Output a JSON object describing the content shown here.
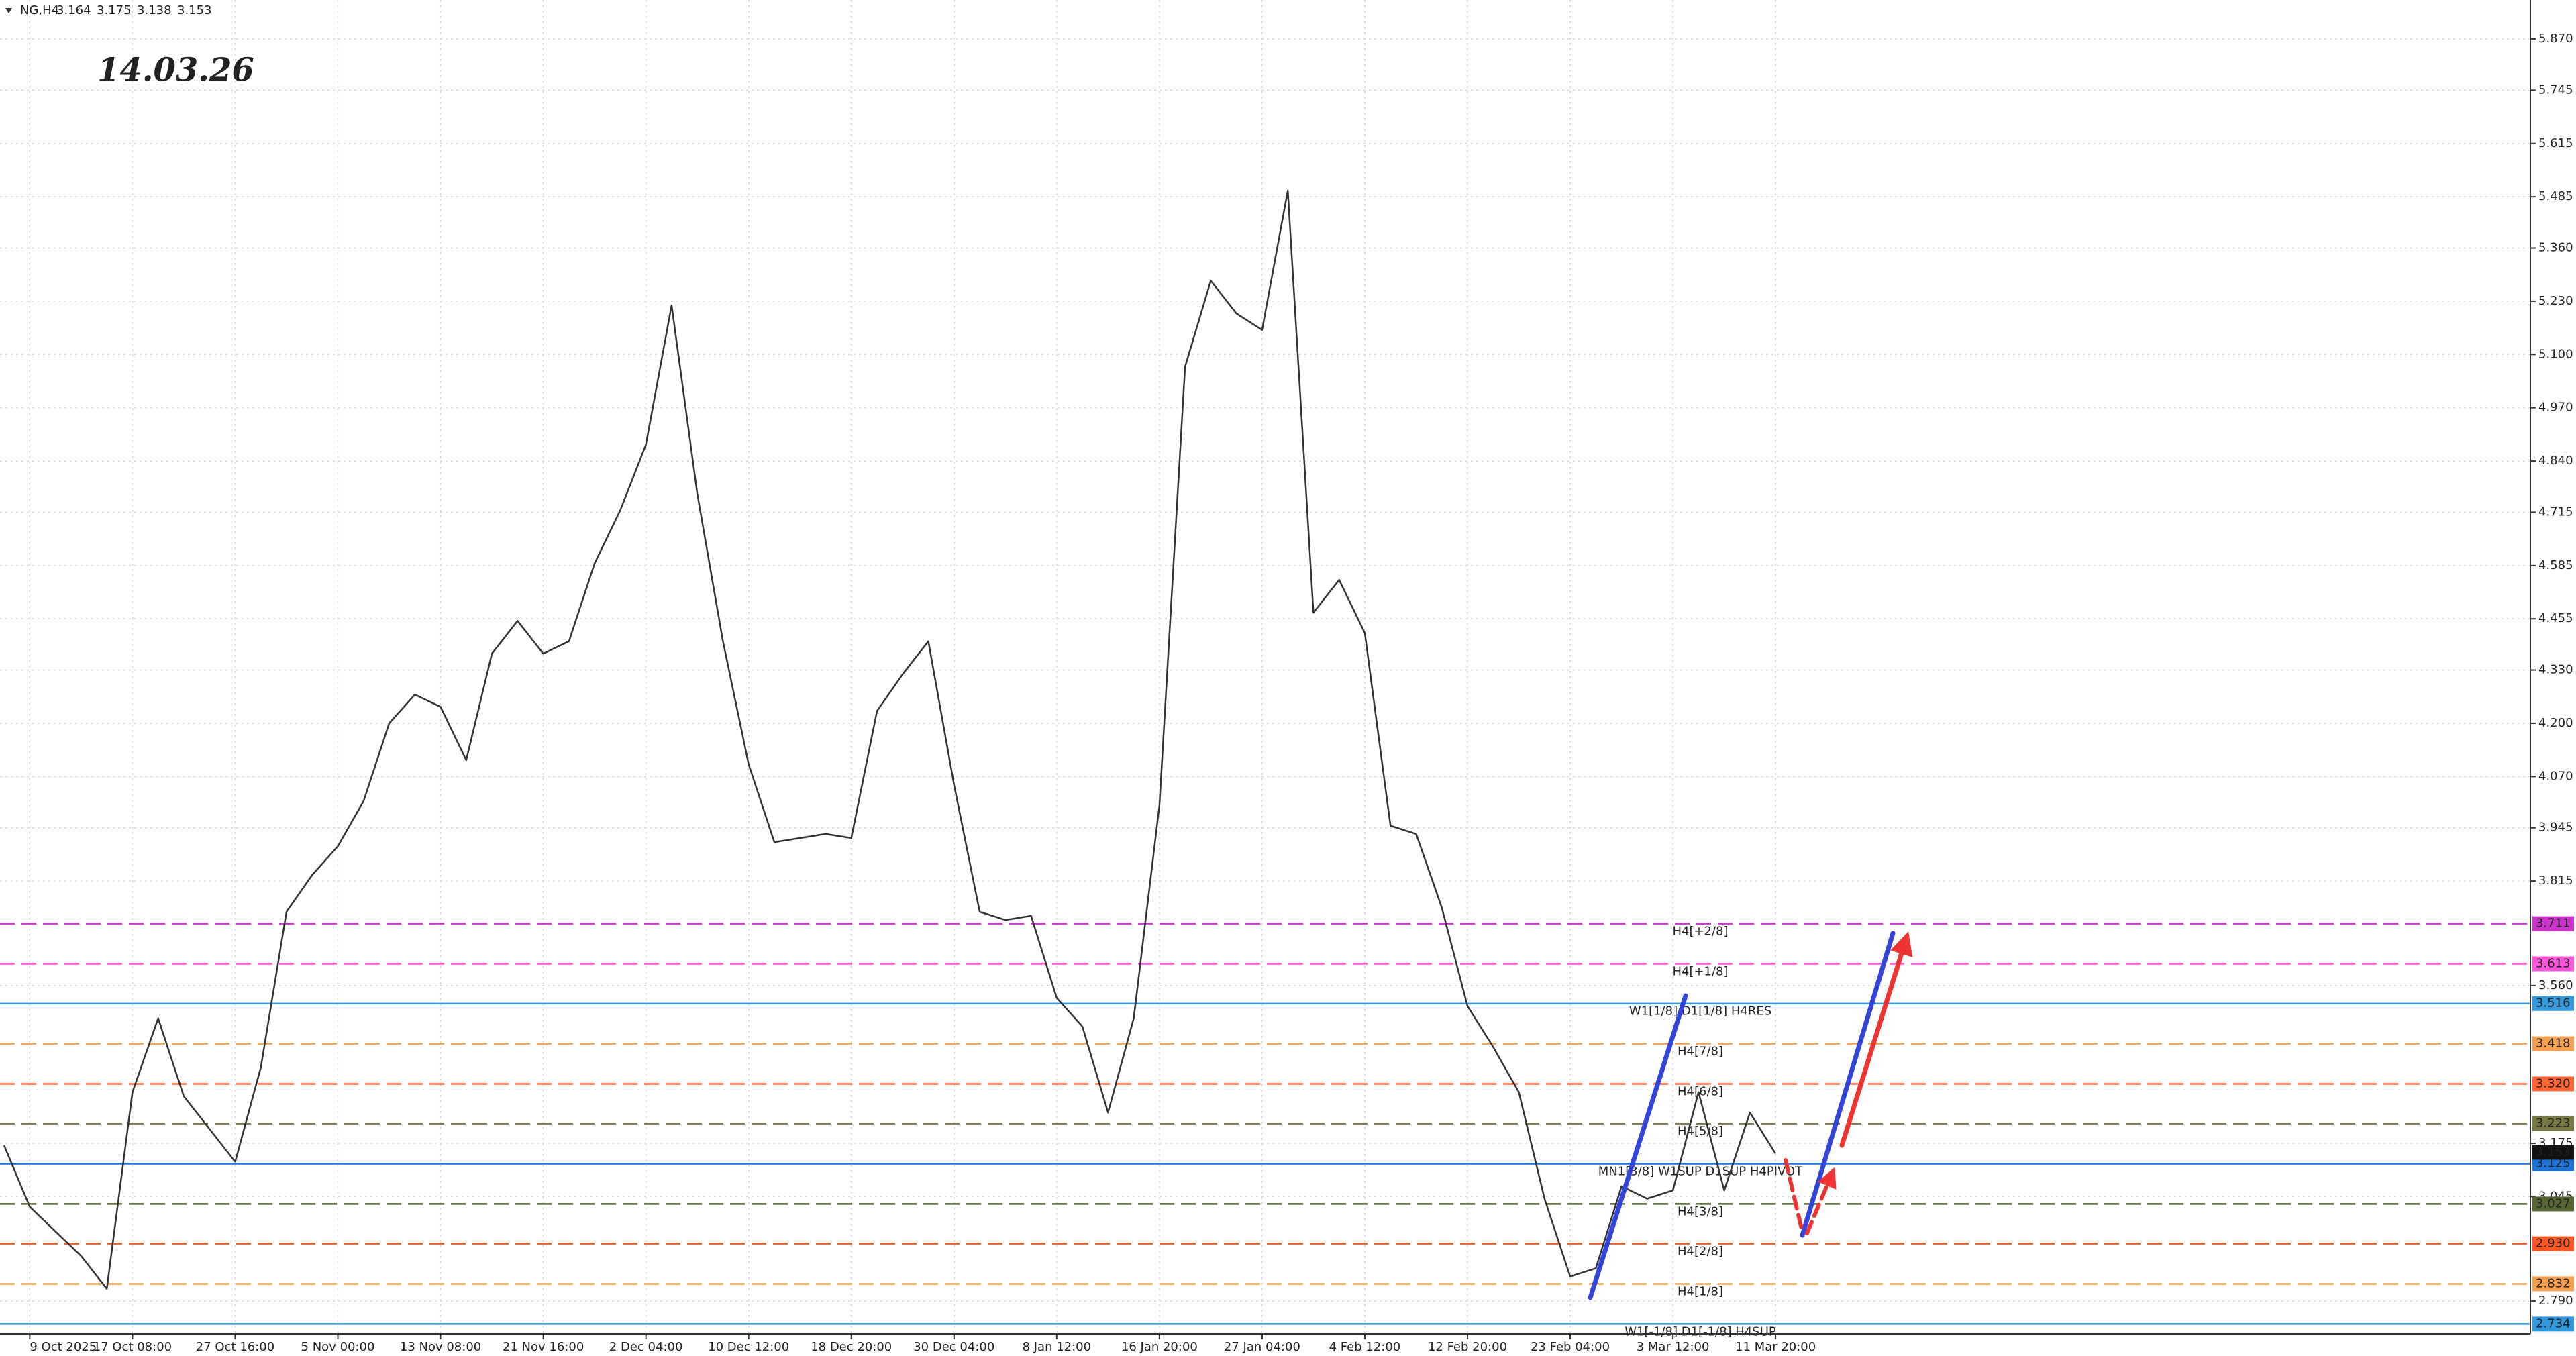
{
  "chart_data": {
    "type": "line",
    "symbol": "NG,H4",
    "quote": [
      3.164,
      3.175,
      3.138,
      3.153
    ],
    "annotation": "14.03.26",
    "xlim": [
      -0.29,
      24.35
    ],
    "xticks": [
      {
        "value": 0,
        "label": "9 Oct 2025"
      },
      {
        "value": 1,
        "label": "17 Oct 08:00"
      },
      {
        "value": 2,
        "label": "27 Oct 16:00"
      },
      {
        "value": 3,
        "label": "5 Nov 00:00"
      },
      {
        "value": 4,
        "label": "13 Nov 08:00"
      },
      {
        "value": 5,
        "label": "21 Nov 16:00"
      },
      {
        "value": 6,
        "label": "2 Dec 04:00"
      },
      {
        "value": 7,
        "label": "10 Dec 12:00"
      },
      {
        "value": 8,
        "label": "18 Dec 20:00"
      },
      {
        "value": 9,
        "label": "30 Dec 04:00"
      },
      {
        "value": 10,
        "label": "8 Jan 12:00"
      },
      {
        "value": 11,
        "label": "16 Jan 20:00"
      },
      {
        "value": 12,
        "label": "27 Jan 04:00"
      },
      {
        "value": 13,
        "label": "4 Feb 12:00"
      },
      {
        "value": 14,
        "label": "12 Feb 20:00"
      },
      {
        "value": 15,
        "label": "23 Feb 04:00"
      },
      {
        "value": 16,
        "label": "3 Mar 12:00"
      },
      {
        "value": 17,
        "label": "11 Mar 20:00"
      }
    ],
    "ylim": [
      2.71,
      5.965
    ],
    "yticks": [
      {
        "value": 5.87,
        "label": "5.870"
      },
      5.745,
      5.615,
      5.485,
      {
        "value": 5.36,
        "label": "5.360"
      },
      {
        "value": 5.23,
        "label": "5.230"
      },
      {
        "value": 5.1,
        "label": "5.100"
      },
      {
        "value": 4.97,
        "label": "4.970"
      },
      {
        "value": 4.84,
        "label": "4.840"
      },
      4.715,
      4.585,
      4.455,
      {
        "value": 4.33,
        "label": "4.330"
      },
      {
        "value": 4.2,
        "label": "4.200"
      },
      {
        "value": 4.07,
        "label": "4.070"
      },
      3.945,
      3.815,
      {
        "value": 3.56,
        "label": "3.560"
      },
      3.175,
      3.045,
      {
        "value": 2.79,
        "label": "2.790"
      }
    ],
    "grid": true,
    "series": [
      {
        "name": "NG",
        "color": "#333333",
        "x": [
          -0.25,
          0,
          0.25,
          0.5,
          0.75,
          1,
          1.25,
          1.5,
          1.75,
          2,
          2.25,
          2.5,
          2.75,
          3,
          3.25,
          3.5,
          3.75,
          4,
          4.25,
          4.5,
          4.75,
          5,
          5.25,
          5.5,
          5.75,
          6,
          6.25,
          6.5,
          6.75,
          7,
          7.25,
          7.5,
          7.75,
          8,
          8.25,
          8.5,
          8.75,
          9,
          9.25,
          9.5,
          9.75,
          10,
          10.25,
          10.5,
          10.75,
          11,
          11.25,
          11.5,
          11.75,
          12,
          12.25,
          12.5,
          12.75,
          13,
          13.25,
          13.5,
          13.75,
          14,
          14.25,
          14.5,
          14.75,
          15,
          15.25,
          15.5,
          15.75,
          16,
          16.25,
          16.5,
          16.75,
          17
        ],
        "values": [
          3.17,
          3.02,
          2.96,
          2.9,
          2.82,
          3.3,
          3.48,
          3.29,
          3.21,
          3.13,
          3.36,
          3.74,
          3.83,
          3.9,
          4.01,
          4.2,
          4.27,
          4.24,
          4.11,
          4.37,
          4.45,
          4.37,
          4.4,
          4.59,
          4.72,
          4.88,
          5.22,
          4.76,
          4.4,
          4.1,
          3.91,
          3.92,
          3.93,
          3.92,
          4.23,
          4.32,
          4.4,
          4.05,
          3.74,
          3.72,
          3.73,
          3.53,
          3.46,
          3.25,
          3.48,
          4.0,
          5.07,
          5.28,
          5.2,
          5.16,
          5.5,
          4.47,
          4.55,
          4.42,
          3.95,
          3.93,
          3.75,
          3.51,
          3.41,
          3.3,
          3.04,
          2.85,
          2.87,
          3.07,
          3.04,
          3.06,
          3.3,
          3.06,
          3.25,
          3.15
        ]
      }
    ],
    "levels": [
      {
        "name": "H4[+2/8]",
        "value": 3.711,
        "color": "#cc33cc",
        "dashed": true
      },
      {
        "name": "H4[+1/8]",
        "value": 3.613,
        "color": "#ff55dd",
        "dashed": true
      },
      {
        "name": "W1[1/8] D1[1/8] H4RES",
        "value": 3.516,
        "color": "#3399dd",
        "dashed": false
      },
      {
        "name": "H4[7/8]",
        "value": 3.418,
        "color": "#f5a050",
        "dashed": true
      },
      {
        "name": "H4[6/8]",
        "value": 3.32,
        "value_label": "3.320",
        "color": "#ff6633",
        "dashed": true
      },
      {
        "name": "H4[5/8]",
        "value": 3.223,
        "color": "#777744",
        "dashed": true
      },
      {
        "name": "MN1[3/8] W1SUP D1SUP H4PIVOT",
        "value": 3.125,
        "color": "#1e74d8",
        "dashed": false
      },
      {
        "name": "H4[3/8]",
        "value": 3.027,
        "color": "#556633",
        "dashed": true
      },
      {
        "name": "H4[2/8]",
        "value": 2.93,
        "value_label": "2.930",
        "color": "#ff5522",
        "dashed": true
      },
      {
        "name": "H4[1/8]",
        "value": 2.832,
        "color": "#f5a050",
        "dashed": true
      },
      {
        "name": "W1[-1/8] D1[-1/8] H4SUP",
        "value": 2.734,
        "color": "#3399dd",
        "dashed": false
      }
    ],
    "last_price": 3.153
  }
}
